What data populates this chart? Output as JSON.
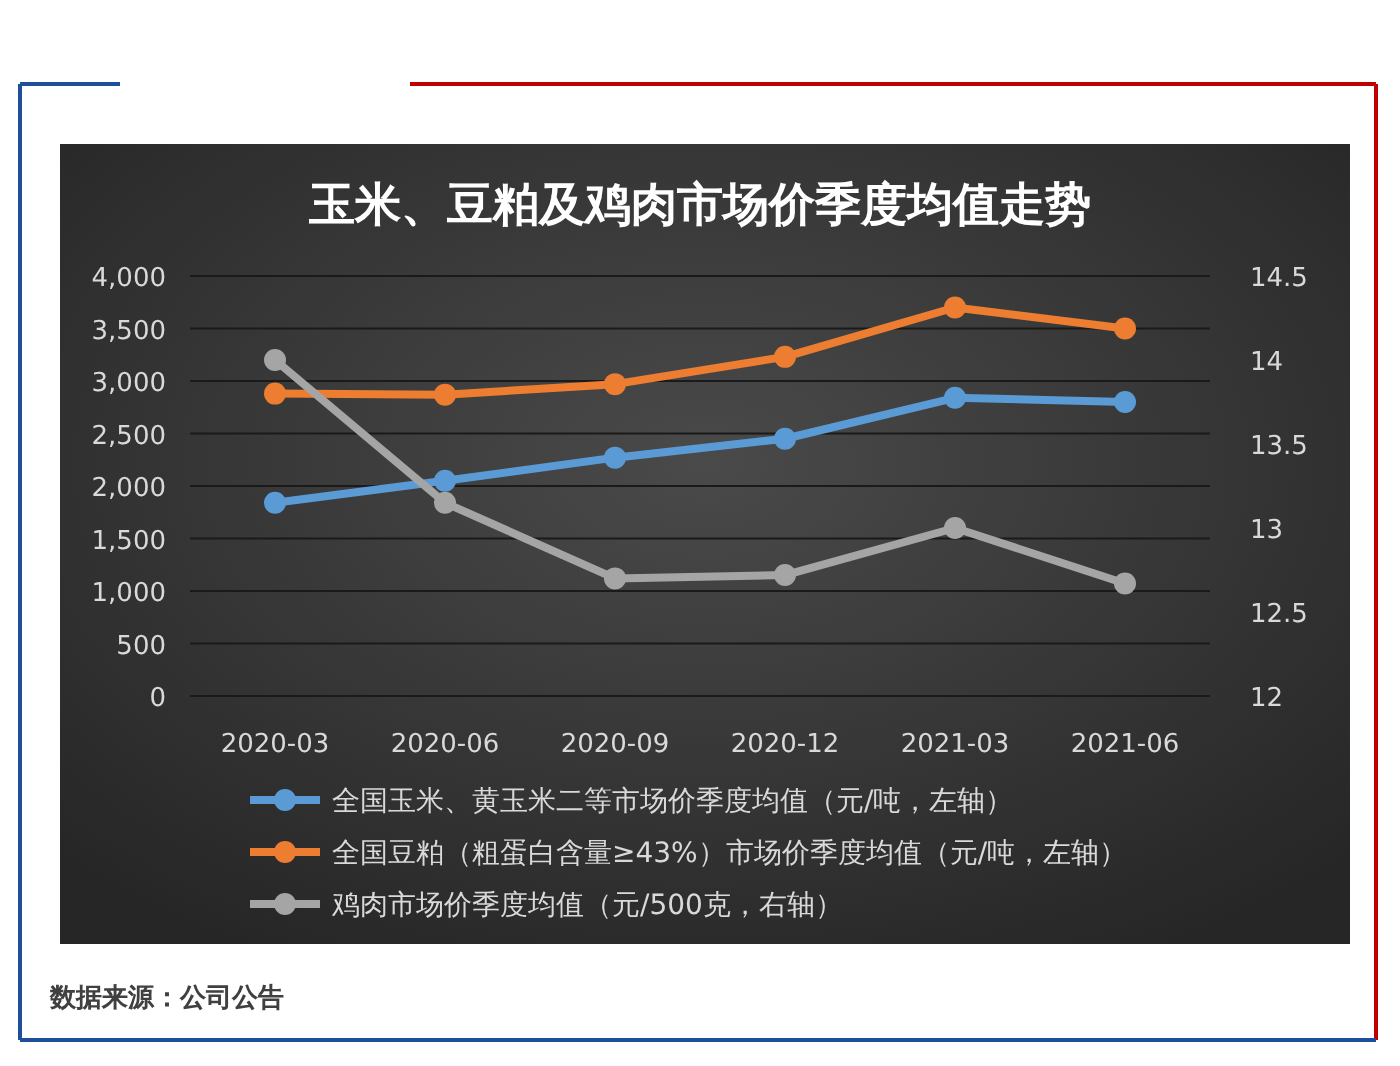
{
  "chart_data": {
    "type": "line",
    "title": "玉米、豆粕及鸡肉市场价季度均值走势",
    "categories": [
      "2020-03",
      "2020-06",
      "2020-09",
      "2020-12",
      "2021-03",
      "2021-06"
    ],
    "series": [
      {
        "name": "全国玉米、黄玉米二等市场价季度均值（元/吨，左轴）",
        "color": "#5b9bd5",
        "values": [
          1840,
          2050,
          2270,
          2450,
          2840,
          2800
        ]
      },
      {
        "name": "全国豆粕（粗蛋白含量≥43%）市场价季度均值（元/吨，左轴）",
        "color": "#ed7d31",
        "values": [
          2880,
          2870,
          2970,
          3230,
          3700,
          3500
        ]
      },
      {
        "name": "鸡肉市场价季度均值（元/500克，右轴）",
        "color": "#a5a5a5",
        "axis": "y2",
        "values": [
          14.0,
          13.15,
          12.7,
          12.72,
          13.0,
          12.67
        ]
      }
    ],
    "ylim": [
      0,
      4000
    ],
    "yticks": [
      0,
      {
        "value": 500,
        "label": "500"
      },
      {
        "value": 1000,
        "label": "1,000"
      },
      {
        "value": 1500,
        "label": "1,500"
      },
      {
        "value": 2000,
        "label": "2,000"
      },
      {
        "value": 2500,
        "label": "2,500"
      },
      {
        "value": 3000,
        "label": "3,000"
      },
      {
        "value": 3500,
        "label": "3,500"
      },
      {
        "value": 4000,
        "label": "4,000"
      }
    ],
    "y2lim": [
      12,
      14.5
    ],
    "y2ticks": [
      12,
      12.5,
      13,
      13.5,
      14,
      14.5
    ],
    "grid": "y",
    "legend": "bottom",
    "marker": "circle",
    "annotations": [
      "数据来源：公司公告"
    ]
  }
}
